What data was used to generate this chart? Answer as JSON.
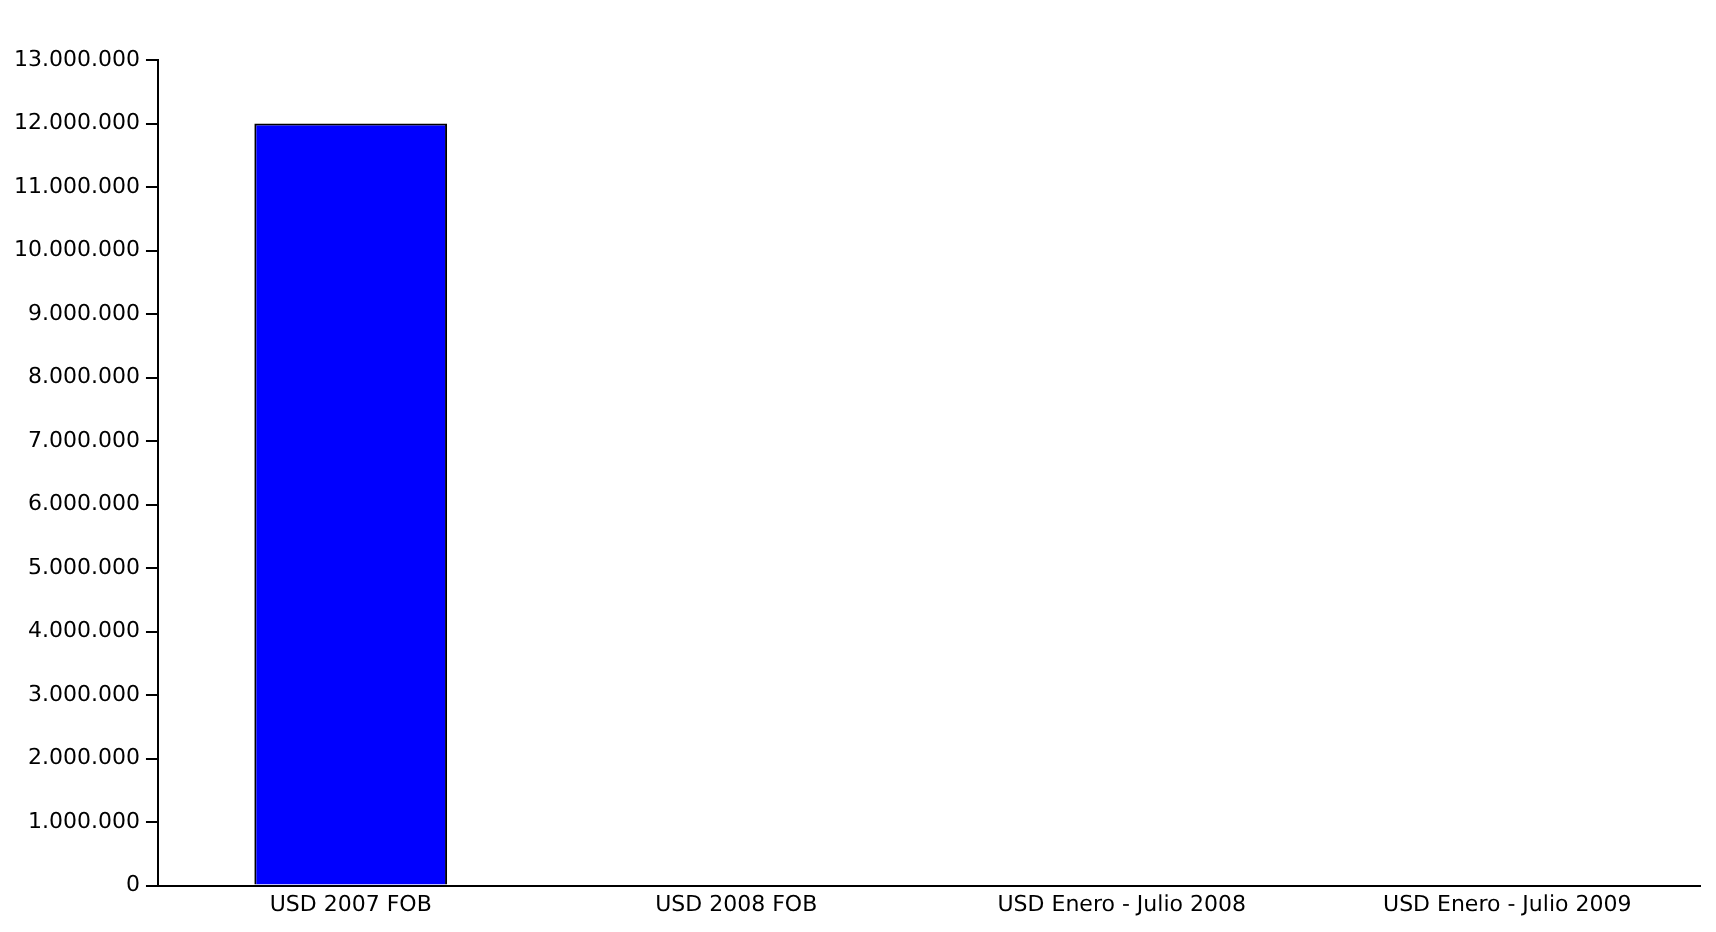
{
  "chart_data": {
    "type": "bar",
    "categories": [
      "USD 2007 FOB",
      "USD 2008 FOB",
      "USD Enero - Julio 2008",
      "USD Enero - Julio 2009"
    ],
    "values": [
      12000000,
      0,
      0,
      0
    ],
    "color": "#0000ff",
    "ylim": [
      0,
      13000000
    ],
    "yticks": [
      {
        "value": 0,
        "label": "0"
      },
      {
        "value": 1000000,
        "label": "1.000.000"
      },
      {
        "value": 2000000,
        "label": "2.000.000"
      },
      {
        "value": 3000000,
        "label": "3.000.000"
      },
      {
        "value": 4000000,
        "label": "4.000.000"
      },
      {
        "value": 5000000,
        "label": "5.000.000"
      },
      {
        "value": 6000000,
        "label": "6.000.000"
      },
      {
        "value": 7000000,
        "label": "7.000.000"
      },
      {
        "value": 8000000,
        "label": "8.000.000"
      },
      {
        "value": 9000000,
        "label": "9.000.000"
      },
      {
        "value": 10000000,
        "label": "10.000.000"
      },
      {
        "value": 11000000,
        "label": "11.000.000"
      },
      {
        "value": 12000000,
        "label": "12.000.000"
      },
      {
        "value": 13000000,
        "label": "13.000.000"
      }
    ],
    "grid": false,
    "legend": false
  }
}
